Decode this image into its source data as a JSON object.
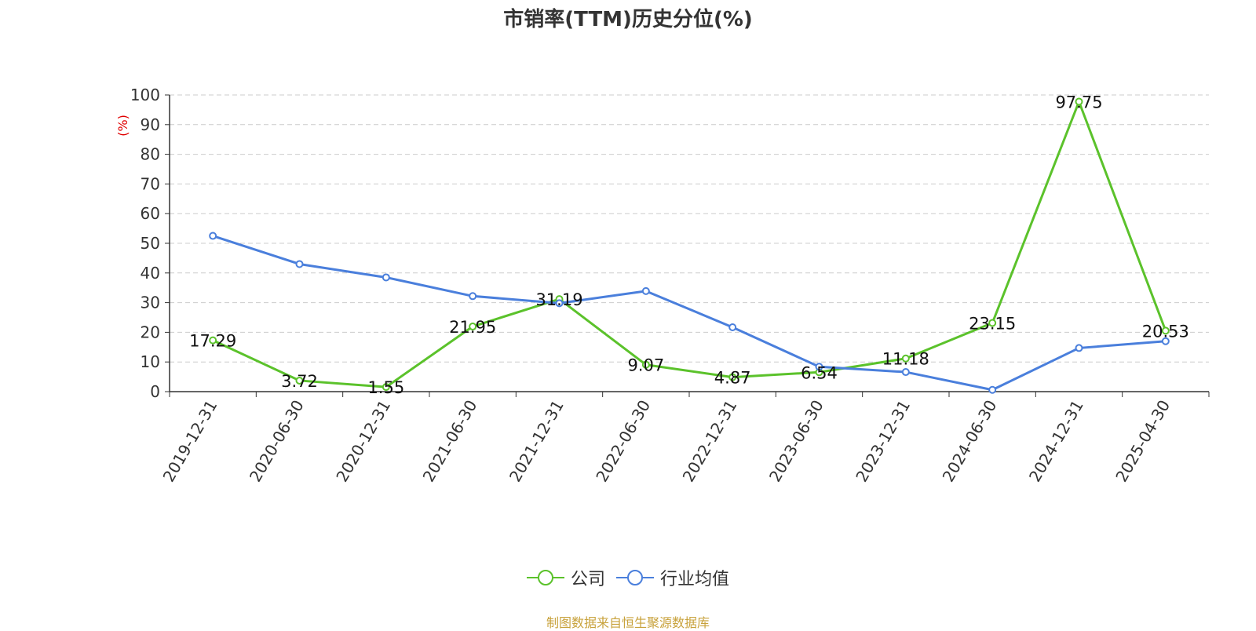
{
  "title": "市销率(TTM)历史分位(%)",
  "source": "制图数据来自恒生聚源数据库",
  "chart_data": {
    "type": "line",
    "title": "市销率(TTM)历史分位(%)",
    "ylabel": "(%)",
    "xlabel": "",
    "ylim": [
      0,
      100
    ],
    "yticks": [
      "0",
      "10",
      "20",
      "30",
      "40",
      "50",
      "60",
      "70",
      "80",
      "90",
      "100"
    ],
    "grid": true,
    "legend_position": "bottom-center",
    "categories": [
      "2019-12-31",
      "2020-06-30",
      "2020-12-31",
      "2021-06-30",
      "2021-12-31",
      "2022-06-30",
      "2022-12-31",
      "2023-06-30",
      "2023-12-31",
      "2024-06-30",
      "2024-12-31",
      "2025-04-30"
    ],
    "series": [
      {
        "name": "公司",
        "color": "#5bc22b",
        "values": [
          17.29,
          3.72,
          1.55,
          21.95,
          31.19,
          9.07,
          4.87,
          6.54,
          11.18,
          23.15,
          97.75,
          20.53
        ],
        "labels": [
          "17.29",
          "3.72",
          "1.55",
          "21.95",
          "31.19",
          "9.07",
          "4.87",
          "6.54",
          "11.18",
          "23.15",
          "97.75",
          "20.53"
        ]
      },
      {
        "name": "行业均值",
        "color": "#4a7fdc",
        "values": [
          52.5,
          43.0,
          38.5,
          32.2,
          29.8,
          33.9,
          21.7,
          8.4,
          6.6,
          0.6,
          14.7,
          17.0
        ]
      }
    ]
  }
}
